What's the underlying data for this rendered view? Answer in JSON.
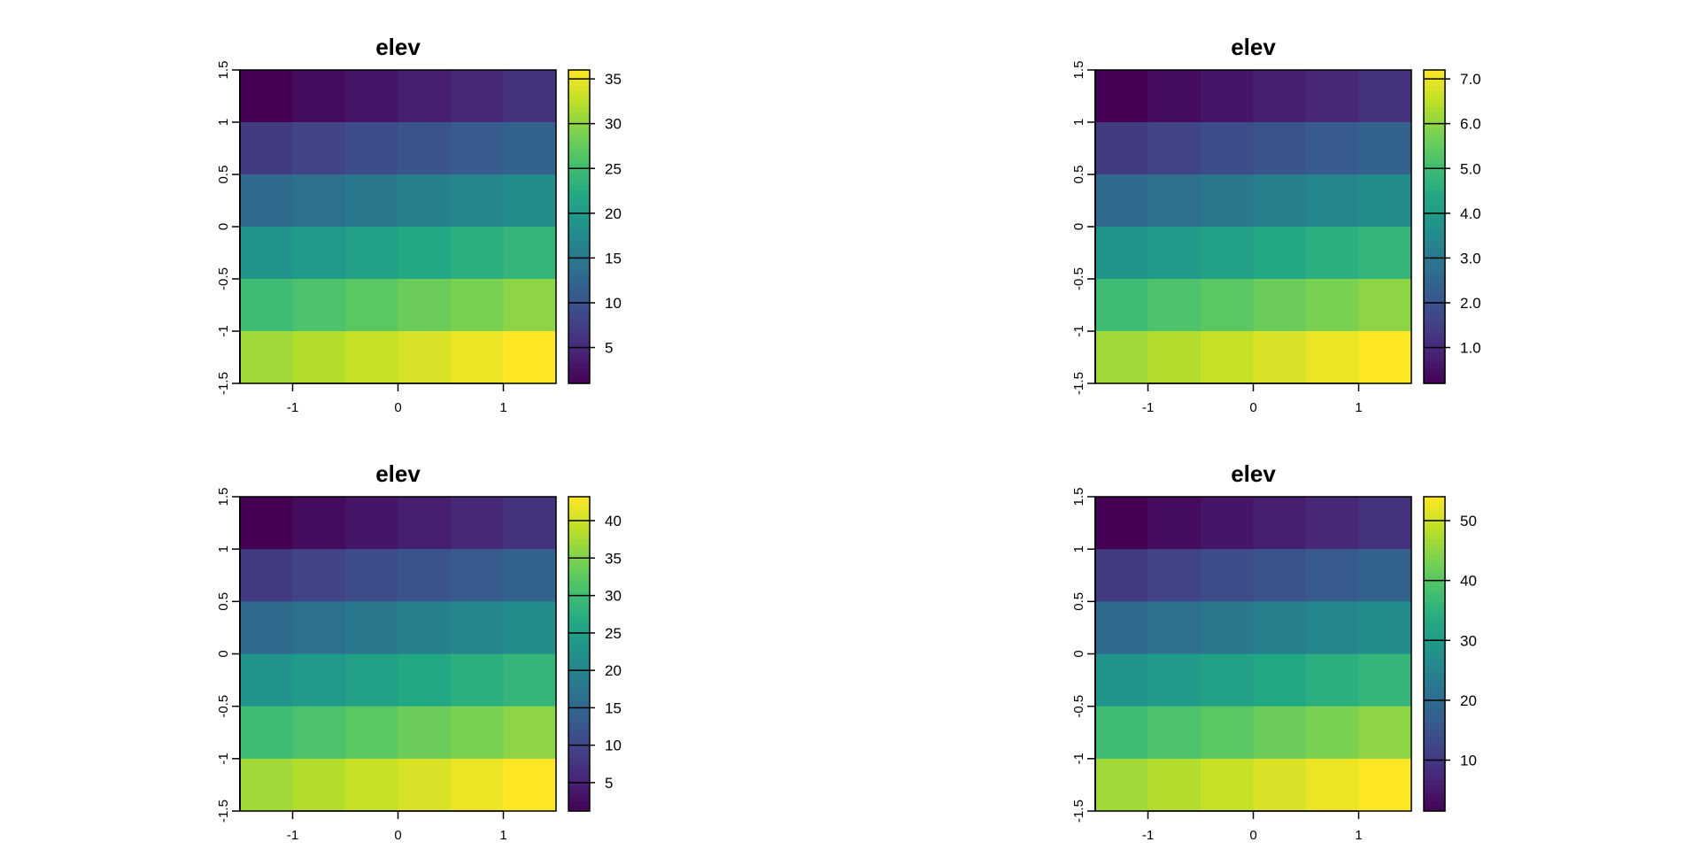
{
  "chart_data": [
    {
      "type": "heatmap",
      "title": "elev",
      "xlim": [
        -1.5,
        1.5
      ],
      "ylim": [
        -1.5,
        1.5
      ],
      "x_ticks": [
        "-1",
        "0",
        "1"
      ],
      "x_tick_values": [
        -1,
        0,
        1
      ],
      "y_ticks": [
        "-1.5",
        "-1",
        "-0.5",
        "0",
        "0.5",
        "1",
        "1.5"
      ],
      "y_tick_values": [
        -1.5,
        -1,
        -0.5,
        0,
        0.5,
        1,
        1.5
      ],
      "legend": {
        "range": [
          1,
          36
        ],
        "ticks": [
          "5",
          "10",
          "15",
          "20",
          "25",
          "30",
          "35"
        ],
        "tick_values": [
          5,
          10,
          15,
          20,
          25,
          30,
          35
        ],
        "placement": "right"
      },
      "colormap": "viridis",
      "values": [
        [
          1,
          2,
          3,
          4,
          5,
          6
        ],
        [
          7,
          8,
          9,
          10,
          11,
          12
        ],
        [
          13,
          14,
          15,
          16,
          17,
          18
        ],
        [
          19,
          20,
          21,
          22,
          23,
          24
        ],
        [
          25,
          26,
          27,
          28,
          29,
          30
        ],
        [
          31,
          32,
          33,
          34,
          35,
          36
        ]
      ]
    },
    {
      "type": "heatmap",
      "title": "elev",
      "xlim": [
        -1.5,
        1.5
      ],
      "ylim": [
        -1.5,
        1.5
      ],
      "x_ticks": [
        "-1",
        "0",
        "1"
      ],
      "x_tick_values": [
        -1,
        0,
        1
      ],
      "y_ticks": [
        "-1.5",
        "-1",
        "-0.5",
        "0",
        "0.5",
        "1",
        "1.5"
      ],
      "y_tick_values": [
        -1.5,
        -1,
        -0.5,
        0,
        0.5,
        1,
        1.5
      ],
      "legend": {
        "range": [
          0.2,
          7.2
        ],
        "ticks": [
          "1.0",
          "2.0",
          "3.0",
          "4.0",
          "5.0",
          "6.0",
          "7.0"
        ],
        "tick_values": [
          1,
          2,
          3,
          4,
          5,
          6,
          7
        ],
        "placement": "right"
      },
      "colormap": "viridis",
      "values": [
        [
          0.2,
          0.4,
          0.6,
          0.8,
          1.0,
          1.2
        ],
        [
          1.4,
          1.6,
          1.8,
          2.0,
          2.2,
          2.4
        ],
        [
          2.6,
          2.8,
          3.0,
          3.2,
          3.4,
          3.6
        ],
        [
          3.8,
          4.0,
          4.2,
          4.4,
          4.6,
          4.8
        ],
        [
          5.0,
          5.2,
          5.4,
          5.6,
          5.8,
          6.0
        ],
        [
          6.2,
          6.4,
          6.6,
          6.8,
          7.0,
          7.2
        ]
      ]
    },
    {
      "type": "heatmap",
      "title": "elev",
      "xlim": [
        -1.5,
        1.5
      ],
      "ylim": [
        -1.5,
        1.5
      ],
      "x_ticks": [
        "-1",
        "0",
        "1"
      ],
      "x_tick_values": [
        -1,
        0,
        1
      ],
      "y_ticks": [
        "-1.5",
        "-1",
        "-0.5",
        "0",
        "0.5",
        "1",
        "1.5"
      ],
      "y_tick_values": [
        -1.5,
        -1,
        -0.5,
        0,
        0.5,
        1,
        1.5
      ],
      "legend": {
        "range": [
          1.2,
          43.2
        ],
        "ticks": [
          "5",
          "10",
          "15",
          "20",
          "25",
          "30",
          "35",
          "40"
        ],
        "tick_values": [
          5,
          10,
          15,
          20,
          25,
          30,
          35,
          40
        ],
        "placement": "right"
      },
      "colormap": "viridis",
      "values": [
        [
          1.2,
          2.4,
          3.6,
          4.8,
          6.0,
          7.2
        ],
        [
          8.4,
          9.6,
          10.8,
          12.0,
          13.2,
          14.4
        ],
        [
          15.6,
          16.8,
          18.0,
          19.2,
          20.4,
          21.6
        ],
        [
          22.8,
          24.0,
          25.2,
          26.4,
          27.6,
          28.8
        ],
        [
          30.0,
          31.2,
          32.4,
          33.6,
          34.8,
          36.0
        ],
        [
          37.2,
          38.4,
          39.6,
          40.8,
          42.0,
          43.2
        ]
      ]
    },
    {
      "type": "heatmap",
      "title": "elev",
      "xlim": [
        -1.5,
        1.5
      ],
      "ylim": [
        -1.5,
        1.5
      ],
      "x_ticks": [
        "-1",
        "0",
        "1"
      ],
      "x_tick_values": [
        -1,
        0,
        1
      ],
      "y_ticks": [
        "-1.5",
        "-1",
        "-0.5",
        "0",
        "0.5",
        "1",
        "1.5"
      ],
      "y_tick_values": [
        -1.5,
        -1,
        -0.5,
        0,
        0.5,
        1,
        1.5
      ],
      "legend": {
        "range": [
          1.5,
          54
        ],
        "ticks": [
          "10",
          "20",
          "30",
          "40",
          "50"
        ],
        "tick_values": [
          10,
          20,
          30,
          40,
          50
        ],
        "placement": "right"
      },
      "colormap": "viridis",
      "values": [
        [
          1.5,
          3,
          4.5,
          6,
          7.5,
          9
        ],
        [
          10.5,
          12,
          13.5,
          15,
          16.5,
          18
        ],
        [
          19.5,
          21,
          22.5,
          24,
          25.5,
          27
        ],
        [
          28.5,
          30,
          31.5,
          33,
          34.5,
          36
        ],
        [
          37.5,
          39,
          40.5,
          42,
          43.5,
          45
        ],
        [
          46.5,
          48,
          49.5,
          51,
          52.5,
          54
        ]
      ]
    }
  ]
}
